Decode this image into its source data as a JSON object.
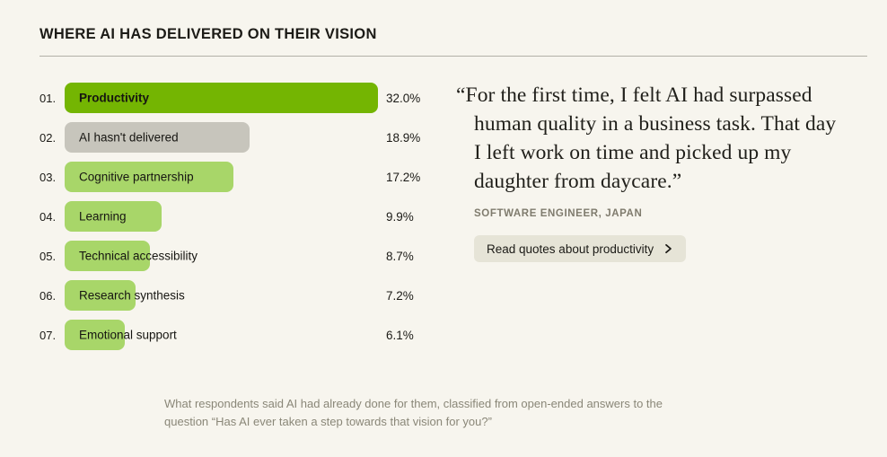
{
  "page": {
    "background": "#F7F5EE",
    "title": "WHERE AI HAS DELIVERED ON THEIR VISION"
  },
  "chart_data": {
    "type": "bar",
    "orientation": "horizontal",
    "title": "WHERE AI HAS DELIVERED ON THEIR VISION",
    "categories": [
      "Productivity",
      "AI hasn't delivered",
      "Cognitive partnership",
      "Learning",
      "Technical accessibility",
      "Research synthesis",
      "Emotional support"
    ],
    "values": [
      32.0,
      18.9,
      17.2,
      9.9,
      8.7,
      7.2,
      6.1
    ],
    "value_labels": [
      "32.0%",
      "18.9%",
      "17.2%",
      "9.9%",
      "8.7%",
      "7.2%",
      "6.1%"
    ],
    "rank_labels": [
      "01.",
      "02.",
      "03.",
      "04.",
      "05.",
      "06.",
      "07."
    ],
    "bar_colors": [
      "#74B502",
      "#C7C5BC",
      "#A8D669",
      "#A8D669",
      "#A8D669",
      "#A8D669",
      "#A8D669"
    ],
    "highlight_index": 0,
    "xlim": [
      0,
      32
    ],
    "grid": false,
    "legend": null
  },
  "quote": {
    "lines": [
      "“For the first time, I felt AI had surpassed",
      "human quality in a business task. That day",
      "I left work on time and picked up my",
      "daughter from daycare.”"
    ],
    "attribution": "SOFTWARE ENGINEER, JAPAN",
    "button_label": "Read quotes about productivity",
    "button_icon": "chevron-right-icon"
  },
  "caption": {
    "lines": [
      "What respondents said AI had already done for them, classified from open-ended answers to the",
      "question “Has AI ever taken a step towards that vision for you?”"
    ]
  }
}
